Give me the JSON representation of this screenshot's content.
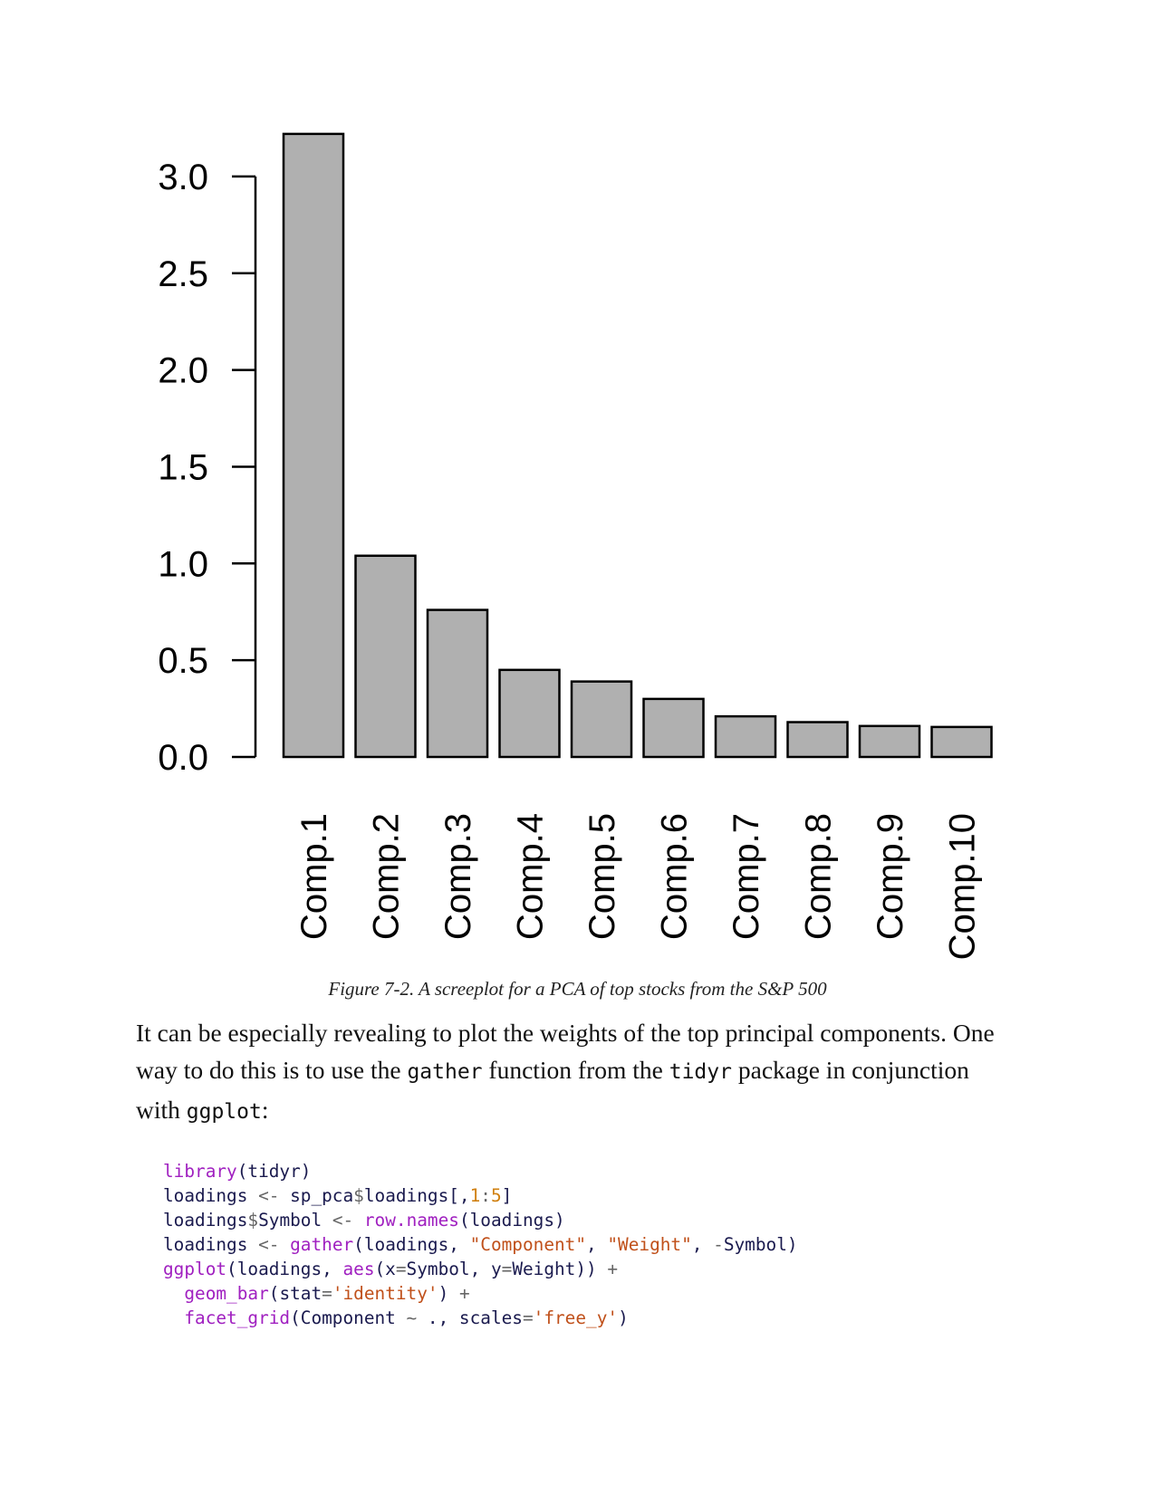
{
  "chart_data": {
    "type": "bar",
    "categories": [
      "Comp.1",
      "Comp.2",
      "Comp.3",
      "Comp.4",
      "Comp.5",
      "Comp.6",
      "Comp.7",
      "Comp.8",
      "Comp.9",
      "Comp.10"
    ],
    "values": [
      3.22,
      1.04,
      0.76,
      0.45,
      0.39,
      0.3,
      0.21,
      0.18,
      0.16,
      0.155
    ],
    "yticks": [
      "0.0",
      "0.5",
      "1.0",
      "1.5",
      "2.0",
      "2.5",
      "3.0"
    ],
    "ylim": [
      0,
      3.0
    ],
    "grid": false,
    "bar_color": "#b0b0b0"
  },
  "caption": "Figure 7-2. A screeplot for a PCA of top stocks from the S&P 500",
  "paragraph": {
    "t1": "It can be especially revealing to plot the weights of the top principal components. One way to do this is to use the ",
    "c1": "gather",
    "t2": " function from the ",
    "c2": "tidyr",
    "t3": " package in conjunction with ",
    "c3": "ggplot",
    "t4": ":"
  },
  "code_lines": [
    [
      [
        "kw",
        "library"
      ],
      [
        "p",
        "(tidyr)"
      ]
    ],
    [
      [
        "p",
        "loadings "
      ],
      [
        "op",
        "<-"
      ],
      [
        "p",
        " sp_pca"
      ],
      [
        "op",
        "$"
      ],
      [
        "p",
        "loadings[,"
      ],
      [
        "num",
        "1"
      ],
      [
        "op",
        ":"
      ],
      [
        "num",
        "5"
      ],
      [
        "p",
        "]"
      ]
    ],
    [
      [
        "p",
        "loadings"
      ],
      [
        "op",
        "$"
      ],
      [
        "p",
        "Symbol "
      ],
      [
        "op",
        "<-"
      ],
      [
        "p",
        " "
      ],
      [
        "kw",
        "row.names"
      ],
      [
        "p",
        "(loadings)"
      ]
    ],
    [
      [
        "p",
        "loadings "
      ],
      [
        "op",
        "<-"
      ],
      [
        "p",
        " "
      ],
      [
        "kw",
        "gather"
      ],
      [
        "p",
        "(loadings, "
      ],
      [
        "str",
        "\"Component\""
      ],
      [
        "p",
        ", "
      ],
      [
        "str",
        "\"Weight\""
      ],
      [
        "p",
        ", "
      ],
      [
        "op",
        "-"
      ],
      [
        "p",
        "Symbol)"
      ]
    ],
    [
      [
        "kw",
        "ggplot"
      ],
      [
        "p",
        "(loadings, "
      ],
      [
        "kw",
        "aes"
      ],
      [
        "p",
        "(x"
      ],
      [
        "op",
        "="
      ],
      [
        "p",
        "Symbol, y"
      ],
      [
        "op",
        "="
      ],
      [
        "p",
        "Weight)) "
      ],
      [
        "op",
        "+"
      ]
    ],
    [
      [
        "p",
        "  "
      ],
      [
        "kw",
        "geom_bar"
      ],
      [
        "p",
        "(stat"
      ],
      [
        "op",
        "="
      ],
      [
        "str",
        "'identity'"
      ],
      [
        "p",
        ") "
      ],
      [
        "op",
        "+"
      ]
    ],
    [
      [
        "p",
        "  "
      ],
      [
        "kw",
        "facet_grid"
      ],
      [
        "p",
        "(Component "
      ],
      [
        "op",
        "~"
      ],
      [
        "p",
        " ., scales"
      ],
      [
        "op",
        "="
      ],
      [
        "str",
        "'free_y'"
      ],
      [
        "p",
        ")"
      ]
    ]
  ]
}
